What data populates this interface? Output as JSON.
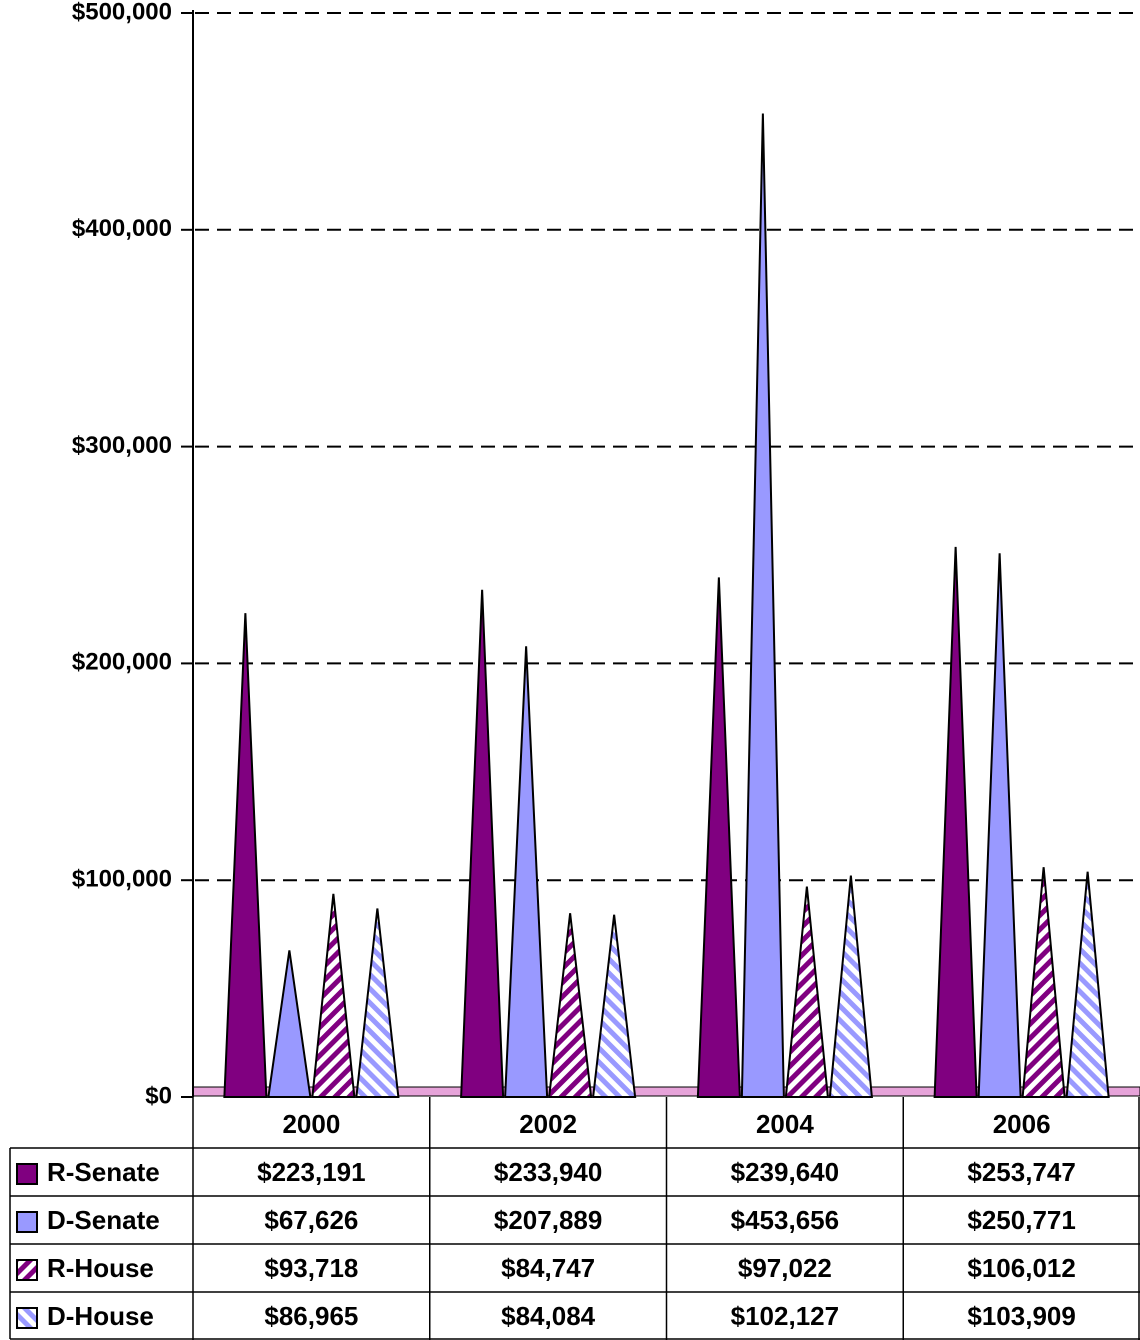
{
  "chart_data": {
    "type": "bar",
    "categories": [
      "2000",
      "2002",
      "2004",
      "2006"
    ],
    "series": [
      {
        "name": "R-Senate",
        "color": "#800080",
        "fill_pattern": "solid",
        "values": [
          223191,
          233940,
          239640,
          253747
        ],
        "value_labels": [
          "$223,191",
          "$233,940",
          "$239,640",
          "$253,747"
        ]
      },
      {
        "name": "D-Senate",
        "color": "#9999ff",
        "fill_pattern": "solid",
        "values": [
          67626,
          207889,
          453656,
          250771
        ],
        "value_labels": [
          "$67,626",
          "$207,889",
          "$453,656",
          "$250,771"
        ]
      },
      {
        "name": "R-House",
        "color": "#800080",
        "fill_pattern": "hatch-down",
        "values": [
          93718,
          84747,
          97022,
          106012
        ],
        "value_labels": [
          "$93,718",
          "$84,747",
          "$97,022",
          "$106,012"
        ]
      },
      {
        "name": "D-House",
        "color": "#9999ff",
        "fill_pattern": "hatch-up",
        "values": [
          86965,
          84084,
          102127,
          103909
        ],
        "value_labels": [
          "$86,965",
          "$84,084",
          "$102,127",
          "$103,909"
        ]
      }
    ],
    "ylim": [
      0,
      500000
    ],
    "yticks": [
      {
        "value": 0,
        "label": "$0"
      },
      {
        "value": 100000,
        "label": "$100,000"
      },
      {
        "value": 200000,
        "label": "$200,000"
      },
      {
        "value": 300000,
        "label": "$300,000"
      },
      {
        "value": 400000,
        "label": "$400,000"
      },
      {
        "value": 500000,
        "label": "$500,000"
      }
    ],
    "grid": true,
    "legend": "table"
  }
}
